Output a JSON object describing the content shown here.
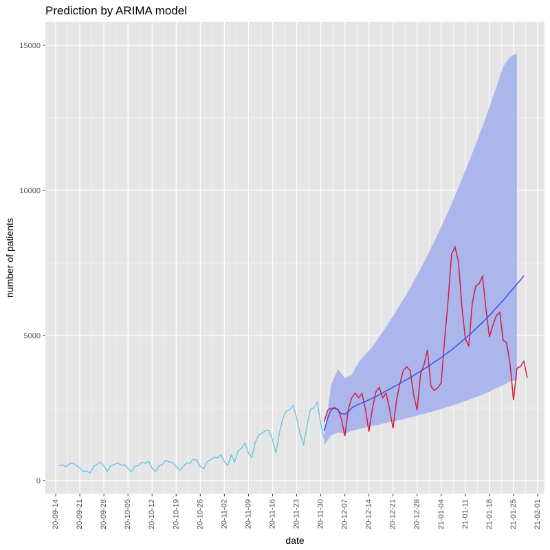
{
  "chart_data": {
    "type": "line",
    "title": "Prediction by ARIMA model",
    "xlabel": "date",
    "ylabel": "number of patients",
    "x_axis_type": "date",
    "xlim": [
      "2020-09-11",
      "2021-02-03"
    ],
    "ylim": [
      -450,
      15800
    ],
    "grid": true,
    "legend": "none",
    "x_ticks": [
      "2020-09-14",
      "2020-09-21",
      "2020-09-28",
      "2020-10-05",
      "2020-10-12",
      "2020-10-19",
      "2020-10-26",
      "2020-11-02",
      "2020-11-09",
      "2020-11-16",
      "2020-11-23",
      "2020-11-30",
      "2020-12-07",
      "2020-12-14",
      "2020-12-21",
      "2020-12-28",
      "2021-01-04",
      "2021-01-11",
      "2021-01-18",
      "2021-01-25",
      "2021-02-01"
    ],
    "x_tick_labels": [
      "20-09-14",
      "20-09-21",
      "20-09-28",
      "20-10-05",
      "20-10-12",
      "20-10-19",
      "20-10-26",
      "20-11-02",
      "20-11-09",
      "20-11-16",
      "20-11-23",
      "20-11-30",
      "20-12-07",
      "20-12-14",
      "20-12-21",
      "20-12-28",
      "21-01-04",
      "21-01-11",
      "21-01-18",
      "21-01-25",
      "21-02-01"
    ],
    "y_ticks": [
      0,
      5000,
      10000,
      15000
    ],
    "y_tick_labels": [
      "0",
      "5000",
      "10000",
      "15000"
    ],
    "colors": {
      "training": "#6ec6ea",
      "actual": "#d7193c",
      "forecast": "#3a50e0",
      "interval": "#aab6ec",
      "panel": "#e5e5e5",
      "grid": "#ffffff"
    },
    "series": [
      {
        "role": "training",
        "start": "2020-09-15",
        "values": [
          520,
          540,
          480,
          570,
          600,
          520,
          430,
          310,
          330,
          250,
          480,
          560,
          640,
          500,
          320,
          520,
          550,
          610,
          530,
          540,
          420,
          300,
          500,
          510,
          630,
          600,
          660,
          430,
          310,
          500,
          550,
          700,
          640,
          620,
          480,
          360,
          470,
          610,
          590,
          740,
          700,
          480,
          410,
          650,
          720,
          810,
          780,
          880,
          650,
          520,
          880,
          640,
          1030,
          1120,
          1290,
          940,
          800,
          1320,
          1570,
          1640,
          1720,
          1720,
          1400,
          950,
          1650,
          2150,
          2390,
          2450,
          2590,
          2150,
          1610,
          1250,
          1870,
          2460,
          2500,
          2700,
          1950,
          1440
        ]
      },
      {
        "role": "actual",
        "start": "2020-12-01",
        "values": [
          2030,
          2420,
          2500,
          2480,
          2460,
          2120,
          1530,
          2450,
          2850,
          3010,
          2850,
          3000,
          2450,
          1690,
          2480,
          3050,
          3210,
          2850,
          3010,
          2450,
          1800,
          2760,
          3350,
          3800,
          3920,
          3790,
          2950,
          2430,
          3680,
          4000,
          4500,
          3250,
          3100,
          3200,
          3370,
          4880,
          6200,
          7800,
          8050,
          7550,
          6000,
          4900,
          4620,
          6100,
          6700,
          6780,
          7040,
          5900,
          4950,
          5350,
          5680,
          5800,
          4830,
          4750,
          4030,
          2770,
          3870,
          3930,
          4110,
          3540
        ]
      },
      {
        "role": "forecast",
        "start": "2020-12-01",
        "values": [
          1710,
          2150,
          2430,
          2520,
          2420,
          2300,
          2290,
          2370,
          2500,
          2570,
          2630,
          2680,
          2720,
          2780,
          2840,
          2890,
          2960,
          3020,
          3090,
          3150,
          3220,
          3280,
          3350,
          3420,
          3480,
          3550,
          3620,
          3700,
          3770,
          3840,
          3920,
          4000,
          4080,
          4160,
          4240,
          4330,
          4420,
          4500,
          4600,
          4700,
          4800,
          4900,
          5000,
          5110,
          5220,
          5340,
          5450,
          5570,
          5690,
          5820,
          5950,
          6080,
          6210,
          6350,
          6490,
          6620,
          6770,
          6910,
          7060
        ]
      }
    ],
    "interval": {
      "start": "2020-12-01",
      "step_days": 2,
      "lower": [
        1220,
        1560,
        1650,
        1620,
        1710,
        1770,
        1830,
        1890,
        1930,
        1990,
        2040,
        2090,
        2150,
        2200,
        2270,
        2330,
        2400,
        2470,
        2540,
        2620,
        2700,
        2780,
        2870,
        2960,
        3060,
        3190,
        3280,
        3420,
        3460
      ],
      "upper": [
        1490,
        3300,
        3840,
        3530,
        3640,
        4080,
        4350,
        4600,
        4950,
        5300,
        5670,
        6050,
        6440,
        6860,
        7300,
        7760,
        8240,
        8740,
        9260,
        9820,
        10380,
        10970,
        11580,
        12210,
        12870,
        13550,
        14260,
        14600,
        14720
      ]
    }
  }
}
